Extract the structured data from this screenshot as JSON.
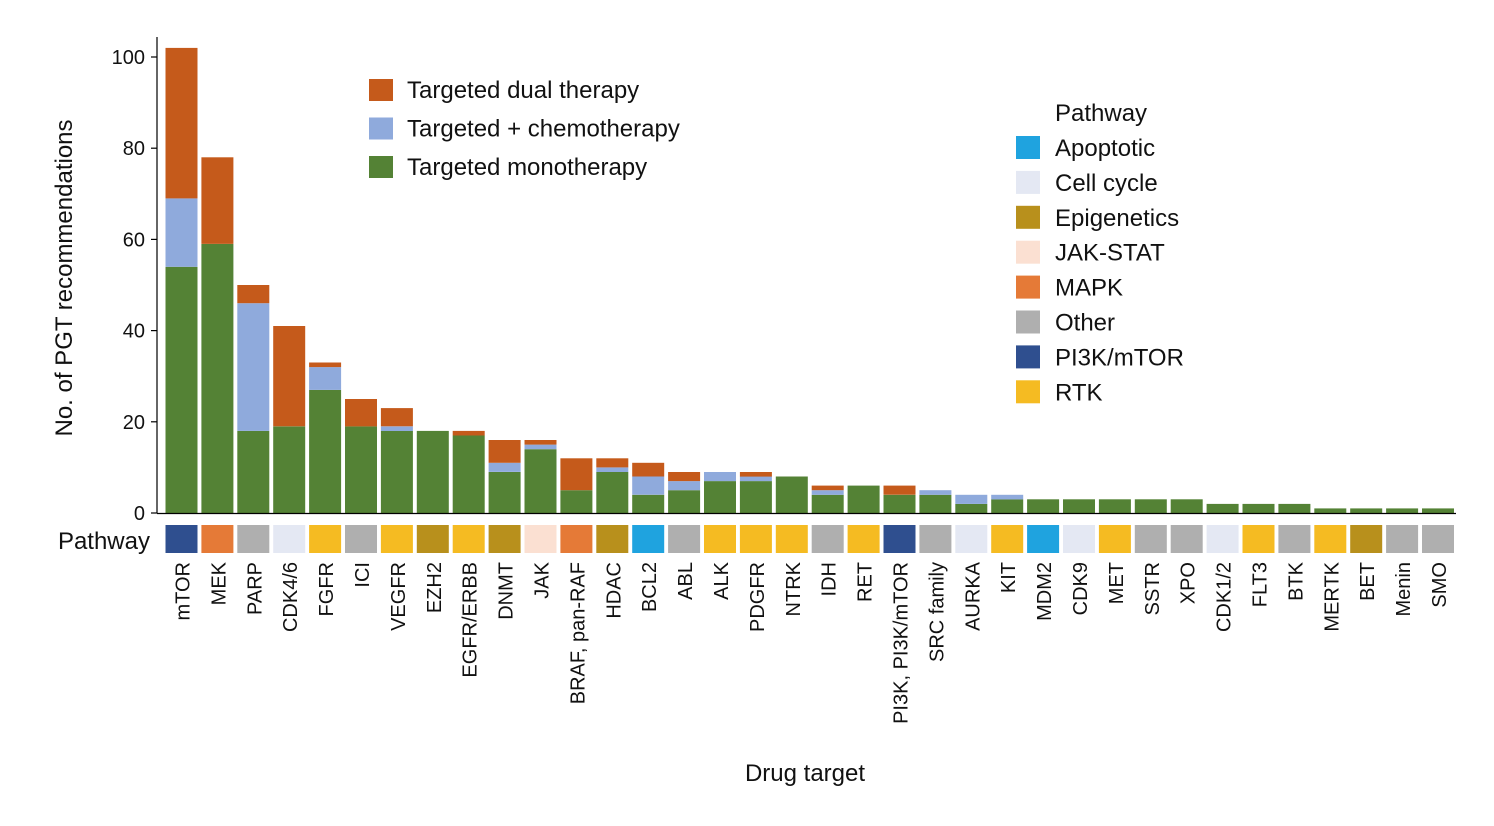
{
  "chart_data": {
    "type": "bar",
    "stacked": true,
    "xlabel": "Drug target",
    "ylabel": "No. of PGT recommendations",
    "ylim": [
      0,
      105
    ],
    "yticks": [
      0,
      20,
      40,
      60,
      80,
      100
    ],
    "grid": false,
    "categories": [
      "mTOR",
      "MEK",
      "PARP",
      "CDK4/6",
      "FGFR",
      "ICI",
      "VEGFR",
      "EZH2",
      "EGFR/ERBB",
      "DNMT",
      "JAK",
      "BRAF, pan-RAF",
      "HDAC",
      "BCL2",
      "ABL",
      "ALK",
      "PDGFR",
      "NTRK",
      "IDH",
      "RET",
      "PI3K, PI3K/mTOR",
      "SRC family",
      "AURKA",
      "KIT",
      "MDM2",
      "CDK9",
      "MET",
      "SSTR",
      "XPO",
      "CDK1/2",
      "FLT3",
      "BTK",
      "MERTK",
      "BET",
      "Menin",
      "SMO"
    ],
    "series": [
      {
        "name": "Targeted monotherapy",
        "color": "#548235",
        "values": [
          54,
          59,
          18,
          19,
          27,
          19,
          18,
          18,
          17,
          9,
          14,
          5,
          9,
          4,
          5,
          7,
          7,
          8,
          4,
          6,
          4,
          4,
          2,
          3,
          3,
          3,
          3,
          3,
          3,
          2,
          2,
          2,
          1,
          1,
          1,
          1
        ]
      },
      {
        "name": "Targeted + chemotherapy",
        "color": "#8faadc",
        "values": [
          15,
          0,
          28,
          0,
          5,
          0,
          1,
          0,
          0,
          2,
          1,
          0,
          1,
          4,
          2,
          2,
          1,
          0,
          1,
          0,
          0,
          1,
          2,
          1,
          0,
          0,
          0,
          0,
          0,
          0,
          0,
          0,
          0,
          0,
          0,
          0
        ]
      },
      {
        "name": "Targeted dual therapy",
        "color": "#c55a1b",
        "values": [
          33,
          19,
          4,
          22,
          1,
          6,
          4,
          0,
          1,
          5,
          1,
          7,
          2,
          3,
          2,
          0,
          1,
          0,
          1,
          0,
          2,
          0,
          0,
          0,
          0,
          0,
          0,
          0,
          0,
          0,
          0,
          0,
          0,
          0,
          0,
          0
        ]
      }
    ],
    "legend_series_order": [
      "Targeted dual therapy",
      "Targeted + chemotherapy",
      "Targeted monotherapy"
    ],
    "legend_position": "top-center",
    "pathway_row_label": "Pathway",
    "pathway_legend_title": "Pathway",
    "pathway_legend_position": "top-right",
    "pathway_colors": {
      "Apoptotic": "#1fa3df",
      "Cell cycle": "#e4e8f3",
      "Epigenetics": "#b8901c",
      "JAK-STAT": "#fbe0d2",
      "MAPK": "#e57a37",
      "Other": "#afafaf",
      "PI3K/mTOR": "#2f4f8f",
      "RTK": "#f5bb22"
    },
    "pathway_legend": [
      "Apoptotic",
      "Cell cycle",
      "Epigenetics",
      "JAK-STAT",
      "MAPK",
      "Other",
      "PI3K/mTOR",
      "RTK"
    ],
    "pathways": [
      "PI3K/mTOR",
      "MAPK",
      "Other",
      "Cell cycle",
      "RTK",
      "Other",
      "RTK",
      "Epigenetics",
      "RTK",
      "Epigenetics",
      "JAK-STAT",
      "MAPK",
      "Epigenetics",
      "Apoptotic",
      "Other",
      "RTK",
      "RTK",
      "RTK",
      "Other",
      "RTK",
      "PI3K/mTOR",
      "Other",
      "Cell cycle",
      "RTK",
      "Apoptotic",
      "Cell cycle",
      "RTK",
      "Other",
      "Other",
      "Cell cycle",
      "RTK",
      "Other",
      "RTK",
      "Epigenetics",
      "Other",
      "Other"
    ]
  }
}
